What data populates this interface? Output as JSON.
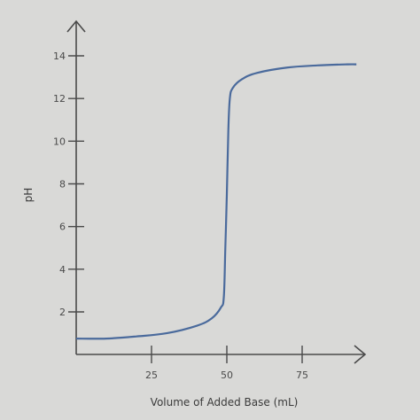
{
  "chart_data": {
    "type": "line",
    "xlabel": "Volume of Added Base (mL)",
    "ylabel": "pH",
    "xlim": [
      0,
      100
    ],
    "ylim": [
      0,
      15
    ],
    "x_ticks": [
      25,
      50,
      75
    ],
    "y_ticks": [
      2,
      4,
      6,
      8,
      10,
      12,
      14
    ],
    "grid": false,
    "series": [
      {
        "color": "#4a6a9c",
        "x": [
          0,
          10,
          20,
          30,
          40,
          45,
          48,
          49,
          49.5,
          50,
          50.5,
          51,
          52,
          55,
          60,
          70,
          80,
          90,
          93
        ],
        "y": [
          0.75,
          0.75,
          0.85,
          1.0,
          1.35,
          1.7,
          2.2,
          2.7,
          5.0,
          7.5,
          10.5,
          12.0,
          12.5,
          12.9,
          13.2,
          13.45,
          13.55,
          13.6,
          13.6
        ]
      }
    ]
  }
}
